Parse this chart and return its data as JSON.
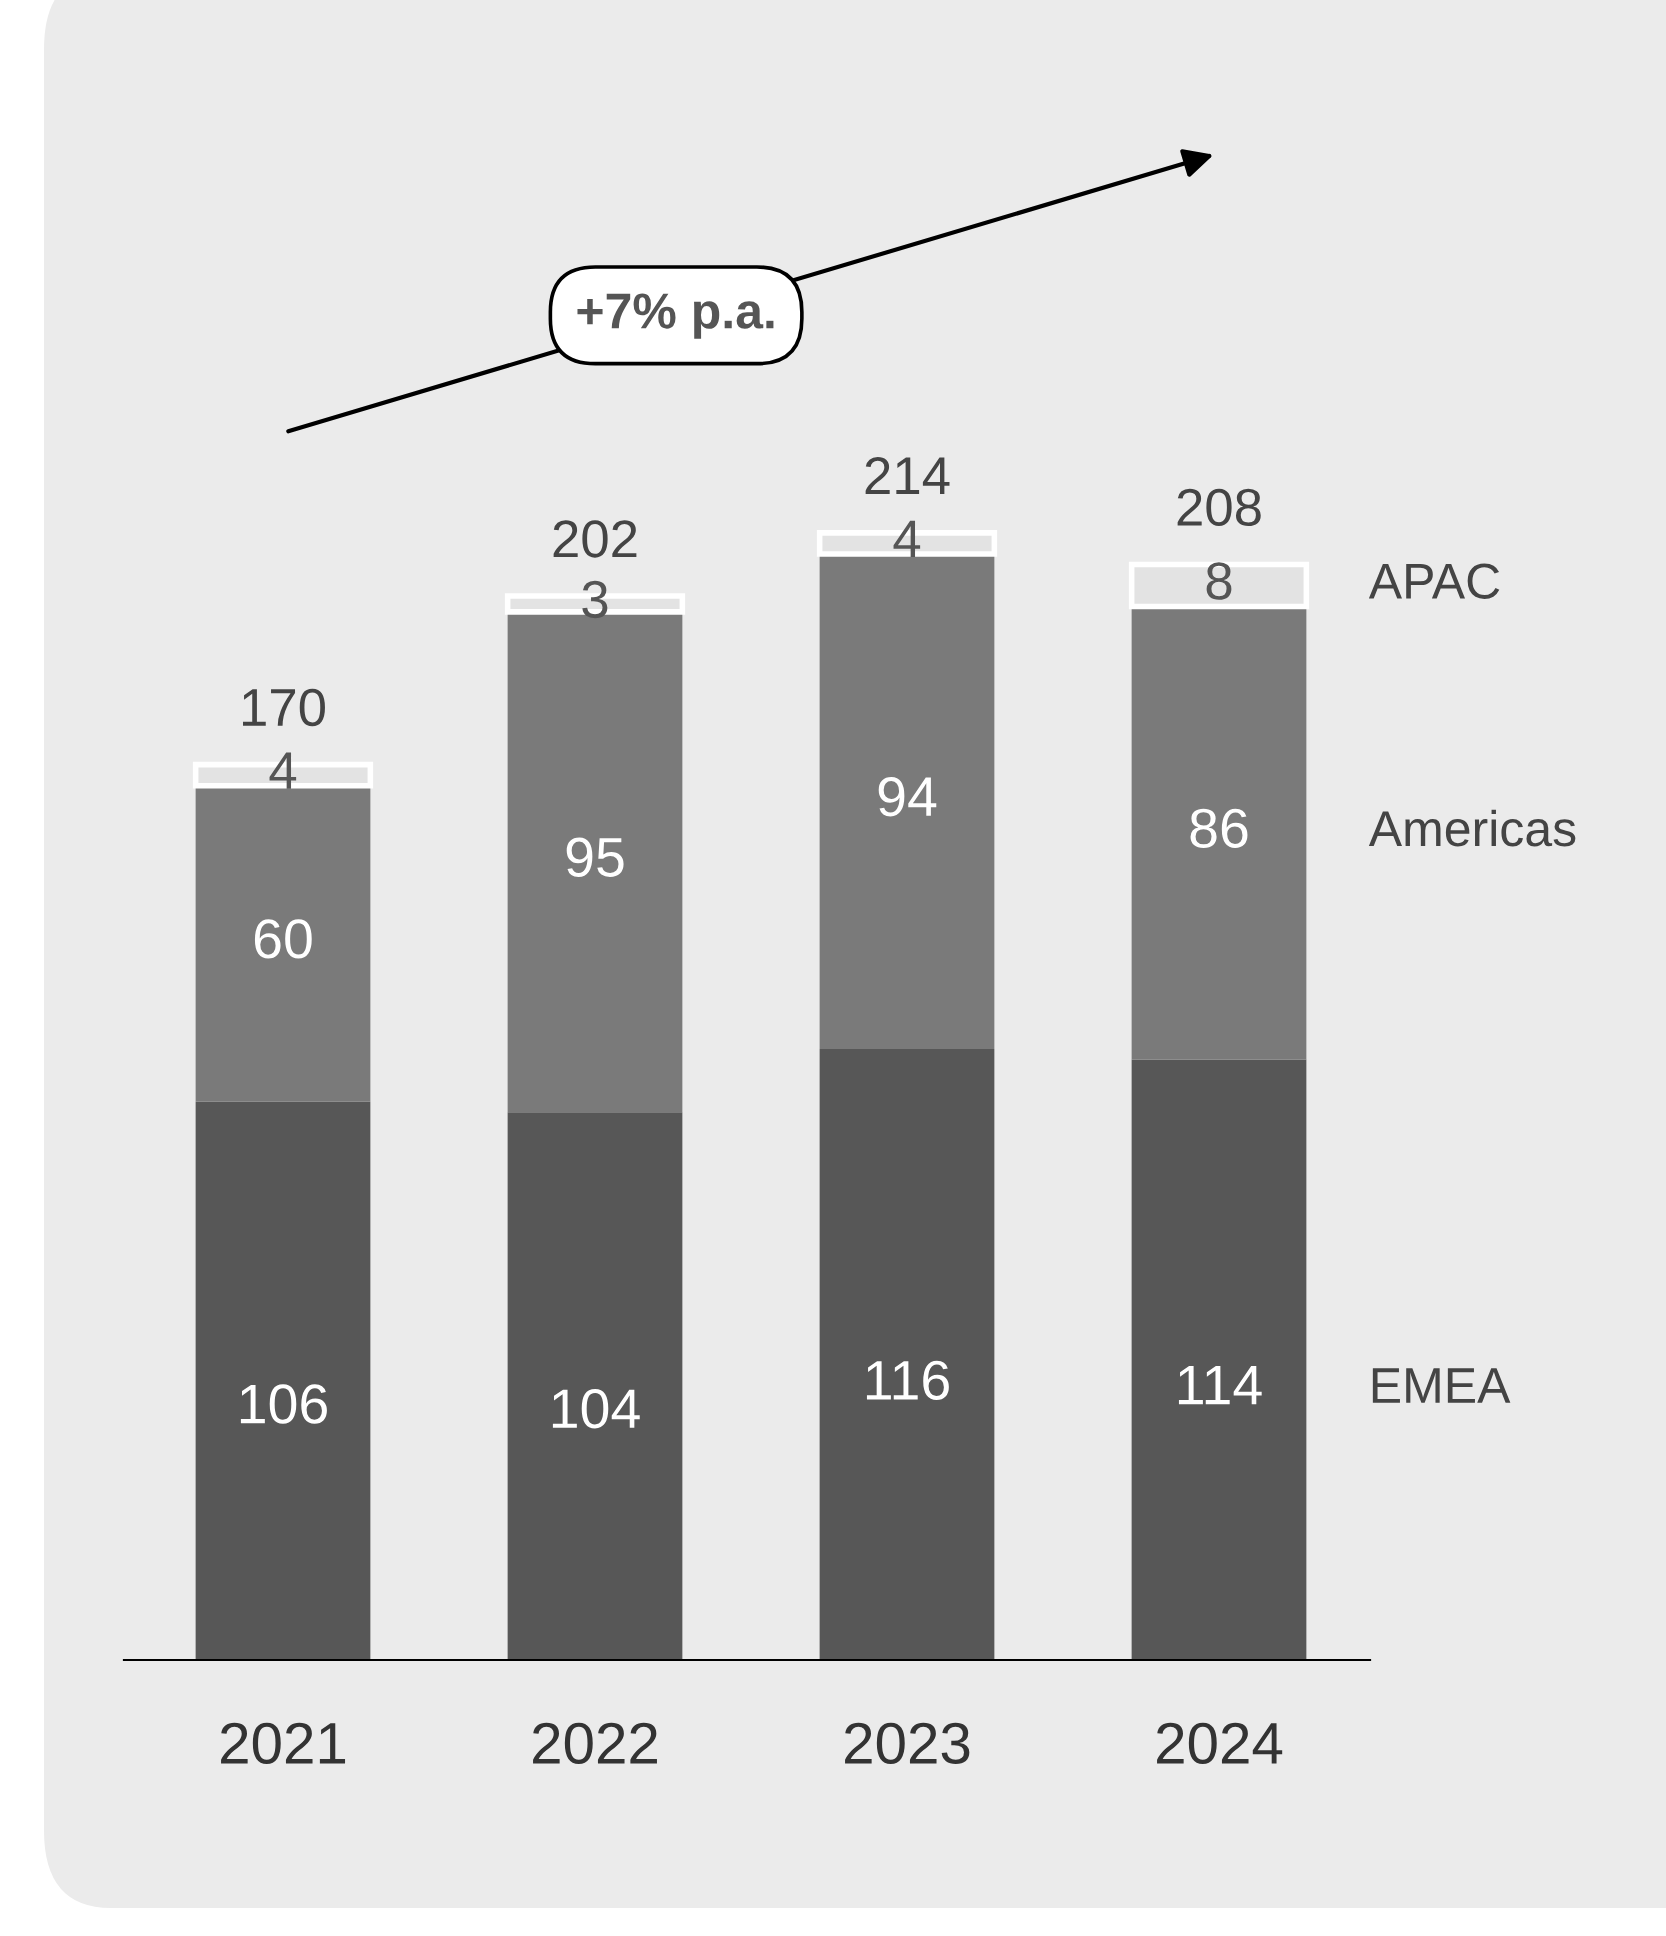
{
  "chart_data": {
    "type": "bar",
    "stacked": true,
    "categories": [
      "2021",
      "2022",
      "2023",
      "2024"
    ],
    "series": [
      {
        "name": "EMEA",
        "color": "#575757",
        "values": [
          106,
          104,
          116,
          114
        ]
      },
      {
        "name": "Americas",
        "color": "#7a7a7a",
        "values": [
          60,
          95,
          94,
          86
        ]
      },
      {
        "name": "APAC",
        "color": "#e3e3e3",
        "values": [
          4,
          3,
          4,
          8
        ]
      }
    ],
    "data_labels": true,
    "totals": [
      "170",
      "202",
      "214",
      "208"
    ],
    "annotations": [
      "+7% p.a."
    ]
  }
}
